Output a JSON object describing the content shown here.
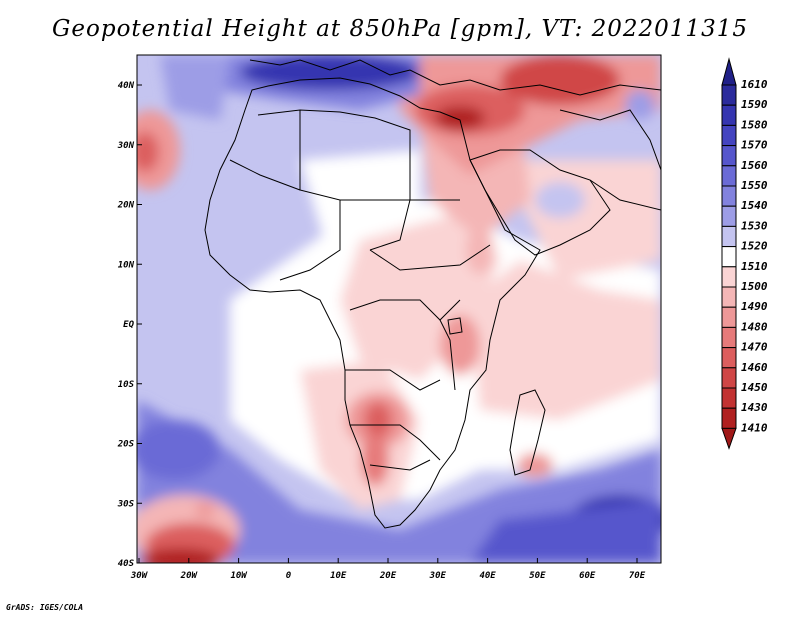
{
  "title": "Geopotential Height at 850hPa [gpm], VT: 2022011315",
  "credit": "GrADS: IGES/COLA",
  "lat_ticks": [
    "40N",
    "30N",
    "20N",
    "10N",
    "EQ",
    "10S",
    "20S",
    "30S",
    "40S"
  ],
  "lon_ticks": [
    "30W",
    "20W",
    "10W",
    "0",
    "10E",
    "20E",
    "30E",
    "40E",
    "50E",
    "60E",
    "70E"
  ],
  "colorbar": {
    "top_label": "1610",
    "levels": [
      {
        "label": "1590",
        "color": "#2b2b9c"
      },
      {
        "label": "1580",
        "color": "#3535b0"
      },
      {
        "label": "1570",
        "color": "#4444c0"
      },
      {
        "label": "1560",
        "color": "#5656cc"
      },
      {
        "label": "1550",
        "color": "#6b6bd6"
      },
      {
        "label": "1540",
        "color": "#8282de"
      },
      {
        "label": "1530",
        "color": "#9d9de6"
      },
      {
        "label": "1520",
        "color": "#c4c4f0"
      },
      {
        "label": "1510",
        "color": "#ffffff"
      },
      {
        "label": "1500",
        "color": "#fad4d4"
      },
      {
        "label": "1490",
        "color": "#f4b6b6"
      },
      {
        "label": "1480",
        "color": "#ee9898"
      },
      {
        "label": "1470",
        "color": "#e67a7a"
      },
      {
        "label": "1460",
        "color": "#dc5e5e"
      },
      {
        "label": "1450",
        "color": "#d04646"
      },
      {
        "label": "1430",
        "color": "#c23232"
      },
      {
        "label": "1410",
        "color": "#b02020"
      }
    ],
    "top_color": "#202088",
    "bottom_color": "#a01818"
  }
}
